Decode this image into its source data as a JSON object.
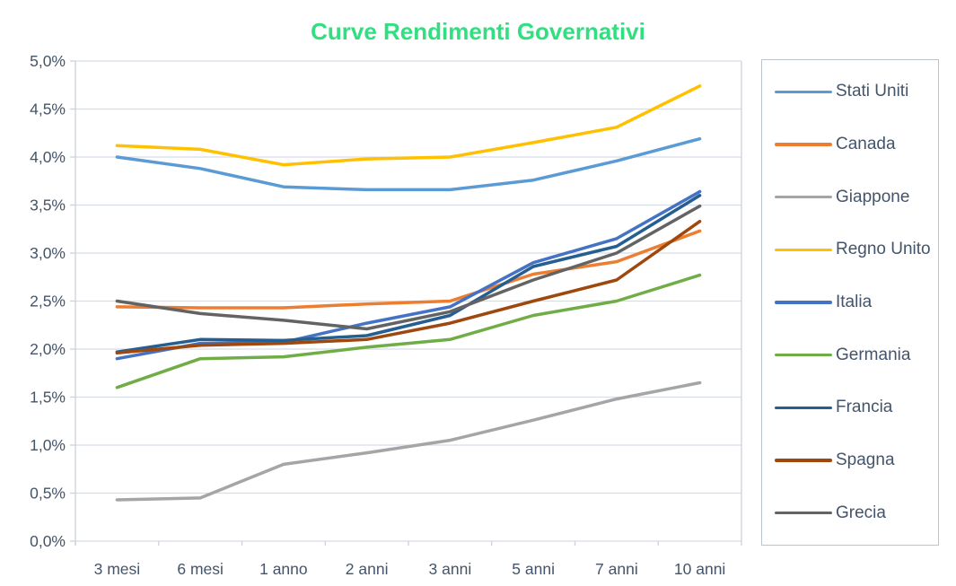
{
  "title_color": "#30E080",
  "axis": {
    "text_color": "#44546A",
    "grid_color": "#D7DEE6",
    "border_color": "#CBD3DC"
  },
  "legend": {
    "position": "right",
    "border_color": "#BCC3CB"
  },
  "chart_data": {
    "type": "line",
    "title": "Curve Rendimenti Governativi",
    "categories": [
      "3 mesi",
      "6 mesi",
      "1 anno",
      "2 anni",
      "3 anni",
      "5 anni",
      "7 anni",
      "10 anni"
    ],
    "xlabel": "",
    "ylabel": "",
    "ylim": [
      0,
      5
    ],
    "ytick_step": 0.5,
    "ytick_format": "italian-percent-1dp",
    "grid": true,
    "legend_position": "right",
    "series": [
      {
        "name": "Stati Uniti",
        "color": "#5B9BD5",
        "values": [
          4.0,
          3.88,
          3.69,
          3.66,
          3.66,
          3.76,
          3.96,
          4.19
        ]
      },
      {
        "name": "Canada",
        "color": "#ED7D31",
        "values": [
          2.44,
          2.43,
          2.43,
          2.47,
          2.5,
          2.78,
          2.91,
          3.23
        ]
      },
      {
        "name": "Giappone",
        "color": "#A5A5A5",
        "values": [
          0.43,
          0.45,
          0.8,
          0.92,
          1.05,
          1.26,
          1.48,
          1.65
        ]
      },
      {
        "name": "Regno Unito",
        "color": "#FFC000",
        "values": [
          4.12,
          4.08,
          3.92,
          3.98,
          4.0,
          4.15,
          4.31,
          4.74
        ]
      },
      {
        "name": "Italia",
        "color": "#4472C4",
        "values": [
          1.9,
          2.06,
          2.07,
          2.27,
          2.44,
          2.9,
          3.15,
          3.64
        ]
      },
      {
        "name": "Germania",
        "color": "#70AD47",
        "values": [
          1.6,
          1.9,
          1.92,
          2.02,
          2.1,
          2.35,
          2.5,
          2.77
        ]
      },
      {
        "name": "Francia",
        "color": "#255E91",
        "values": [
          1.97,
          2.1,
          2.09,
          2.14,
          2.35,
          2.86,
          3.07,
          3.6
        ]
      },
      {
        "name": "Spagna",
        "color": "#9E480E",
        "values": [
          1.96,
          2.04,
          2.06,
          2.1,
          2.27,
          2.5,
          2.72,
          3.33
        ]
      },
      {
        "name": "Grecia",
        "color": "#636363",
        "values": [
          2.5,
          2.37,
          2.3,
          2.21,
          2.39,
          2.72,
          3.0,
          3.49
        ]
      }
    ]
  }
}
